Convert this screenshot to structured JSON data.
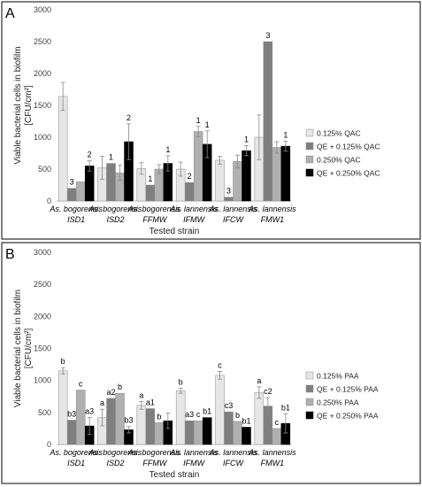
{
  "chart_data": [
    {
      "type": "bar",
      "panel_label": "A",
      "categories": [
        {
          "line1": "As. bogorensis",
          "line2": "ISD1"
        },
        {
          "line1": "As. bogorensis",
          "line2": "ISD2"
        },
        {
          "line1": "As. bogorensis",
          "line2": "FFMW"
        },
        {
          "line1": "As. lannensis",
          "line2": "IFMW"
        },
        {
          "line1": "As. lannensis",
          "line2": "IFCW"
        },
        {
          "line1": "As. lannensis",
          "line2": "FMW1"
        }
      ],
      "series": [
        {
          "name": "0.125% QAC",
          "color": "#e6e6e6",
          "values": [
            1640,
            520,
            510,
            500,
            640,
            1000
          ],
          "errors": [
            220,
            180,
            90,
            110,
            60,
            350
          ],
          "labels": [
            "",
            "",
            "",
            "",
            "",
            ""
          ]
        },
        {
          "name": "QE + 0.125% QAC",
          "color": "#7f7f7f",
          "values": [
            200,
            590,
            250,
            290,
            60,
            2500
          ],
          "errors": [
            0,
            0,
            0,
            0,
            0,
            0
          ],
          "labels": [
            "3",
            "1",
            "1",
            "2",
            "3",
            "3"
          ]
        },
        {
          "name": "0.250% QAC",
          "color": "#b0b0b0",
          "values": [
            300,
            440,
            500,
            1090,
            620,
            840
          ],
          "errors": [
            0,
            120,
            70,
            80,
            100,
            90
          ],
          "labels": [
            "",
            "",
            "",
            "1",
            "",
            ""
          ]
        },
        {
          "name": "QE + 0.250% QAC",
          "color": "#000000",
          "values": [
            550,
            930,
            590,
            890,
            790,
            860
          ],
          "errors": [
            80,
            280,
            120,
            210,
            80,
            80
          ],
          "labels": [
            "2",
            "2",
            "1",
            "1",
            "1",
            "1"
          ]
        }
      ],
      "ylabel_line1": "Viable bacterial cells in biofilm",
      "ylabel_line2": "[CFU/cm²]",
      "xlabel": "Tested strain",
      "ylim": [
        0,
        3000
      ],
      "yticks": [
        0,
        500,
        1000,
        1500,
        2000,
        2500,
        3000
      ],
      "grid": false,
      "legend_position": "right"
    },
    {
      "type": "bar",
      "panel_label": "B",
      "categories": [
        {
          "line1": "As. bogorensis",
          "line2": "ISD1"
        },
        {
          "line1": "As. bogorensis",
          "line2": "ISD2"
        },
        {
          "line1": "As. bogorensis",
          "line2": "FFMW"
        },
        {
          "line1": "As. lannensis",
          "line2": "IFMW"
        },
        {
          "line1": "As. lannensis",
          "line2": "IFCW"
        },
        {
          "line1": "As. lannensis",
          "line2": "FMW1"
        }
      ],
      "series": [
        {
          "name": "0.125% PAA",
          "color": "#e6e6e6",
          "values": [
            1150,
            420,
            610,
            840,
            1080,
            810
          ],
          "errors": [
            50,
            130,
            60,
            40,
            60,
            90
          ],
          "labels": [
            "b",
            "a",
            "a",
            "b",
            "c",
            "a"
          ]
        },
        {
          "name": "QE + 0.125% PAA",
          "color": "#7f7f7f",
          "values": [
            380,
            720,
            560,
            370,
            510,
            600
          ],
          "errors": [
            0,
            0,
            0,
            0,
            0,
            130
          ],
          "labels": [
            "b3",
            "a2",
            "a1",
            "a3",
            "c3",
            "c2"
          ]
        },
        {
          "name": "0.250% PAA",
          "color": "#b0b0b0",
          "values": [
            850,
            800,
            340,
            370,
            360,
            250
          ],
          "errors": [
            0,
            0,
            0,
            0,
            0,
            0
          ],
          "labels": [
            "c",
            "b",
            "b",
            "c",
            "b",
            "c"
          ]
        },
        {
          "name": "QE + 0.250% PAA",
          "color": "#000000",
          "values": [
            290,
            230,
            370,
            420,
            270,
            330
          ],
          "errors": [
            130,
            50,
            120,
            0,
            0,
            150
          ],
          "labels": [
            "a3",
            "b3",
            "",
            "b1",
            "b1",
            "b1"
          ]
        }
      ],
      "ylabel_line1": "Viable bacterial cells in biofilm",
      "ylabel_line2": "[CFU/cm²]",
      "xlabel": "Tested strain",
      "ylim": [
        0,
        3000
      ],
      "yticks": [
        0,
        500,
        1000,
        1500,
        2000,
        2500,
        3000
      ],
      "grid": false,
      "legend_position": "right"
    }
  ]
}
